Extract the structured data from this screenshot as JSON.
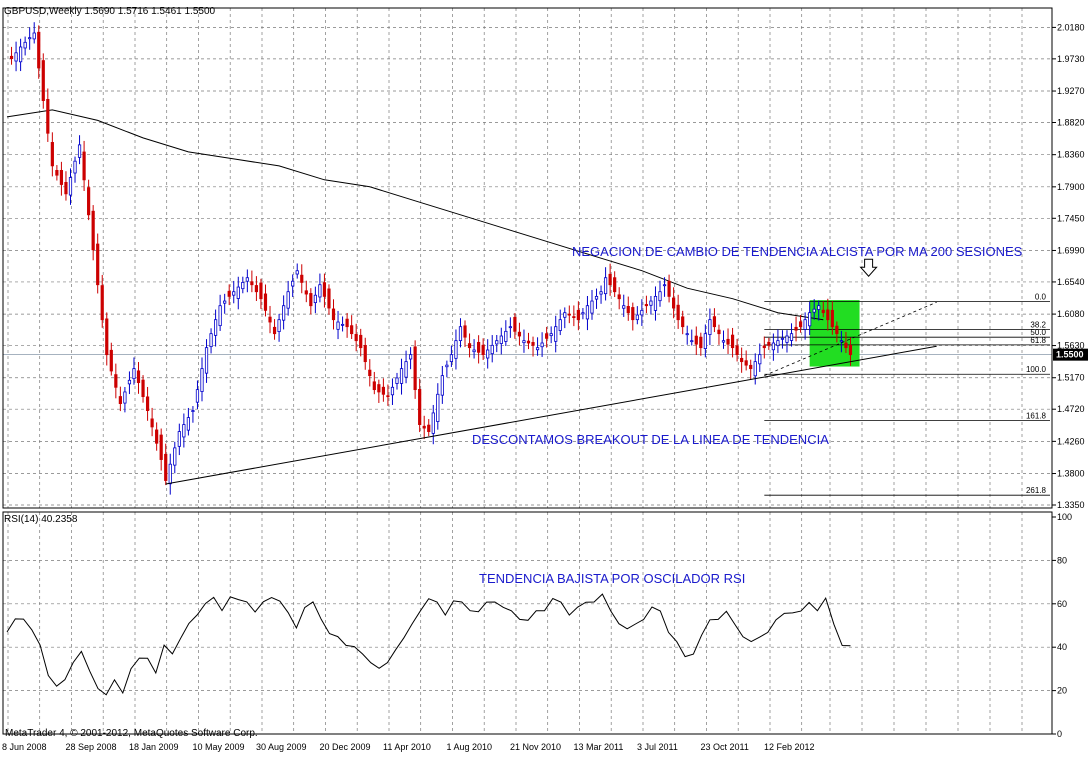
{
  "window": {
    "header": "GBPUSD,Weekly  1.5690 1.5716 1.5461 1.5500",
    "copyright": "MetaTrader 4, © 2001-2012, MetaQuotes Software Corp."
  },
  "annotations": {
    "ma_note": "NEGACION DE CAMBIO DE TENDENCIA ALCISTA POR MA 200 SESIONES",
    "breakout_note": "DESCONTAMOS BREAKOUT DE LA LINEA DE TENDENCIA",
    "rsi_note": "TENDENCIA BAJISTA POR OSCILADOR RSI"
  },
  "colors": {
    "bull": "#0000cc",
    "bear": "#cc0000",
    "text_blue": "#1a1acc",
    "highlight": "#22dd22",
    "grid": "#7a7a7a"
  },
  "chart_data": [
    {
      "type": "candlestick",
      "symbol": "GBPUSD",
      "timeframe": "Weekly",
      "last_price": "1.5500",
      "ylim": [
        1.335,
        2.02
      ],
      "ytick_labels": [
        "2.0180",
        "1.9730",
        "1.9270",
        "1.8820",
        "1.8360",
        "1.7900",
        "1.7450",
        "1.6990",
        "1.6540",
        "1.6080",
        "1.5630",
        "1.5170",
        "1.4720",
        "1.4260",
        "1.3800",
        "1.3350"
      ],
      "xtick_labels": [
        "8 Jun 2008",
        "28 Sep 2008",
        "18 Jan 2009",
        "10 May 2009",
        "30 Aug 2009",
        "20 Dec 2009",
        "11 Apr 2010",
        "1 Aug 2010",
        "21 Nov 2010",
        "13 Mar 2011",
        "3 Jul 2011",
        "23 Oct 2011",
        "12 Feb 2012"
      ],
      "close_path": [
        [
          0,
          1.965
        ],
        [
          3,
          1.99
        ],
        [
          6,
          2.01
        ],
        [
          7,
          1.96
        ],
        [
          10,
          1.82
        ],
        [
          13,
          1.78
        ],
        [
          16,
          1.85
        ],
        [
          19,
          1.7
        ],
        [
          22,
          1.55
        ],
        [
          25,
          1.48
        ],
        [
          28,
          1.53
        ],
        [
          31,
          1.47
        ],
        [
          34,
          1.4
        ],
        [
          35,
          1.37
        ],
        [
          38,
          1.44
        ],
        [
          41,
          1.47
        ],
        [
          44,
          1.56
        ],
        [
          47,
          1.62
        ],
        [
          50,
          1.64
        ],
        [
          53,
          1.66
        ],
        [
          56,
          1.63
        ],
        [
          59,
          1.58
        ],
        [
          62,
          1.64
        ],
        [
          64,
          1.67
        ],
        [
          67,
          1.62
        ],
        [
          69,
          1.65
        ],
        [
          72,
          1.6
        ],
        [
          75,
          1.59
        ],
        [
          78,
          1.56
        ],
        [
          81,
          1.5
        ],
        [
          84,
          1.49
        ],
        [
          87,
          1.53
        ],
        [
          89,
          1.55
        ],
        [
          91,
          1.45
        ],
        [
          93,
          1.44
        ],
        [
          96,
          1.52
        ],
        [
          98,
          1.55
        ],
        [
          100,
          1.59
        ],
        [
          102,
          1.56
        ],
        [
          105,
          1.55
        ],
        [
          108,
          1.57
        ],
        [
          111,
          1.59
        ],
        [
          114,
          1.57
        ],
        [
          117,
          1.56
        ],
        [
          120,
          1.58
        ],
        [
          123,
          1.61
        ],
        [
          126,
          1.6
        ],
        [
          128,
          1.62
        ],
        [
          131,
          1.64
        ],
        [
          132,
          1.66
        ],
        [
          135,
          1.63
        ],
        [
          138,
          1.6
        ],
        [
          141,
          1.62
        ],
        [
          144,
          1.64
        ],
        [
          145,
          1.65
        ],
        [
          148,
          1.6
        ],
        [
          151,
          1.57
        ],
        [
          153,
          1.56
        ],
        [
          155,
          1.6
        ],
        [
          158,
          1.57
        ],
        [
          160,
          1.56
        ],
        [
          162,
          1.54
        ],
        [
          164,
          1.53
        ],
        [
          167,
          1.56
        ],
        [
          170,
          1.57
        ],
        [
          173,
          1.58
        ],
        [
          175,
          1.59
        ],
        [
          177,
          1.61
        ],
        [
          179,
          1.62
        ],
        [
          181,
          1.6
        ],
        [
          184,
          1.57
        ],
        [
          186,
          1.55
        ]
      ],
      "ma200_path": [
        [
          0,
          1.89
        ],
        [
          10,
          1.9
        ],
        [
          20,
          1.885
        ],
        [
          30,
          1.86
        ],
        [
          40,
          1.84
        ],
        [
          50,
          1.83
        ],
        [
          60,
          1.82
        ],
        [
          70,
          1.8
        ],
        [
          80,
          1.79
        ],
        [
          90,
          1.77
        ],
        [
          100,
          1.75
        ],
        [
          110,
          1.73
        ],
        [
          120,
          1.71
        ],
        [
          130,
          1.69
        ],
        [
          140,
          1.67
        ],
        [
          150,
          1.645
        ],
        [
          160,
          1.63
        ],
        [
          170,
          1.61
        ],
        [
          180,
          1.6
        ]
      ],
      "trendline": [
        [
          35,
          1.365
        ],
        [
          205,
          1.562
        ]
      ],
      "projection_line": [
        [
          167,
          1.52
        ],
        [
          205,
          1.625
        ]
      ],
      "fibonacci": {
        "x_range": [
          167,
          230
        ],
        "levels": [
          {
            "label": "0.0",
            "price": 1.626
          },
          {
            "label": "38.2",
            "price": 1.586
          },
          {
            "label": "50.0",
            "price": 1.575
          },
          {
            "label": "61.8",
            "price": 1.564
          },
          {
            "label": "100.0",
            "price": 1.522
          },
          {
            "label": "161.8",
            "price": 1.456
          },
          {
            "label": "261.8",
            "price": 1.349
          }
        ]
      },
      "highlight_box": {
        "x_range": [
          177,
          188
        ],
        "price_range": [
          1.533,
          1.628
        ]
      }
    },
    {
      "type": "line",
      "name": "RSI(14) 40.2358",
      "ylim": [
        0,
        100
      ],
      "ytick_labels": [
        "100",
        "80",
        "60",
        "40",
        "20",
        "0"
      ],
      "levels": [
        20,
        40,
        60,
        80
      ],
      "values": [
        47,
        52,
        54,
        48,
        40,
        28,
        22,
        24,
        34,
        38,
        28,
        22,
        18,
        24,
        20,
        30,
        34,
        36,
        28,
        40,
        38,
        44,
        50,
        56,
        60,
        62,
        58,
        63,
        61,
        62,
        56,
        60,
        64,
        61,
        55,
        50,
        58,
        60,
        54,
        46,
        44,
        42,
        40,
        36,
        34,
        30,
        32,
        40,
        44,
        50,
        58,
        62,
        60,
        56,
        61,
        60,
        58,
        56,
        60,
        62,
        58,
        56,
        54,
        52,
        56,
        58,
        62,
        60,
        56,
        58,
        60,
        62,
        64,
        56,
        52,
        48,
        50,
        54,
        58,
        56,
        48,
        42,
        35,
        38,
        45,
        52,
        54,
        56,
        50,
        46,
        42,
        44,
        48,
        52,
        55,
        57,
        56,
        60,
        58,
        62,
        50,
        42,
        40
      ],
      "x_end": 186
    }
  ]
}
